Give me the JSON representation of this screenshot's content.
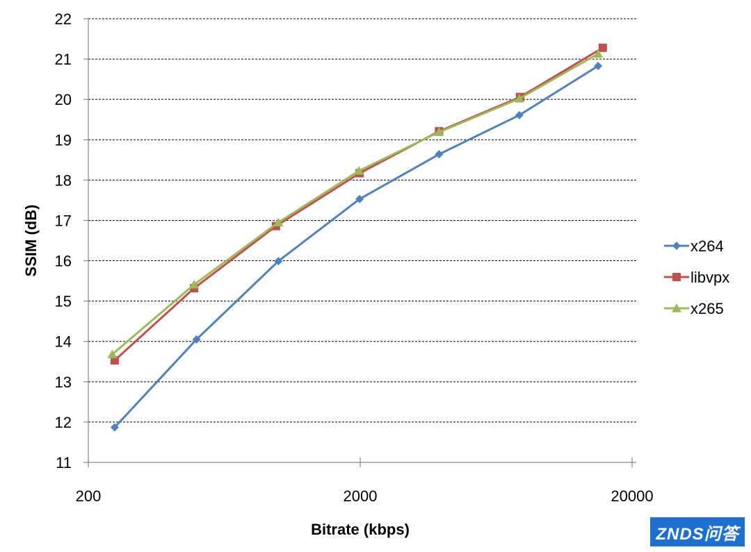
{
  "chart_data": {
    "type": "line",
    "xscale": "log",
    "xlabel": "Bitrate (kbps)",
    "ylabel": "SSIM (dB)",
    "xticks": [
      200,
      2000,
      20000
    ],
    "xtick_labels": [
      "200",
      "2000",
      "20000"
    ],
    "xlim": [
      200,
      20000
    ],
    "ylim": [
      11,
      22
    ],
    "yticks": [
      11,
      12,
      13,
      14,
      15,
      16,
      17,
      18,
      19,
      20,
      21,
      22
    ],
    "grid": "horizontal dashed",
    "legend_position": "right",
    "series": [
      {
        "name": "x264",
        "color": "#4f81bd",
        "marker": "diamond",
        "x": [
          250,
          500,
          1000,
          1990,
          3900,
          7700,
          15000
        ],
        "y": [
          11.87,
          14.05,
          15.99,
          17.53,
          18.64,
          19.61,
          20.83
        ]
      },
      {
        "name": "libvpx",
        "color": "#c0504d",
        "marker": "square",
        "x": [
          250,
          490,
          980,
          1990,
          3900,
          7750,
          15600
        ],
        "y": [
          13.53,
          15.32,
          16.86,
          18.17,
          19.21,
          20.06,
          21.28
        ]
      },
      {
        "name": "x265",
        "color": "#9bbb59",
        "marker": "triangle",
        "x": [
          245,
          490,
          1000,
          1980,
          3900,
          7700,
          15000
        ],
        "y": [
          13.68,
          15.41,
          16.95,
          18.23,
          19.19,
          20.02,
          21.13
        ]
      }
    ]
  },
  "watermark": {
    "text": "ZNDS问答",
    "color": "#1d6fd0"
  }
}
